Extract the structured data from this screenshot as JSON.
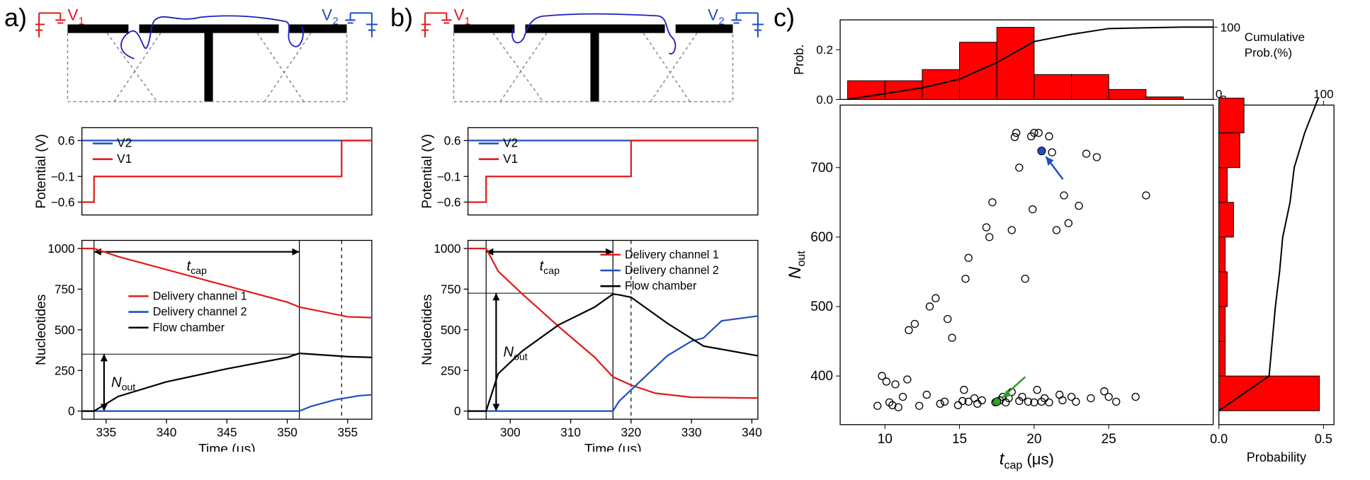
{
  "colors": {
    "v1": "#e31a1c",
    "v2": "#1f4fbf",
    "black": "#000000",
    "barFill": "#ff0000",
    "barEdge": "#000000",
    "axisColor": "#000000",
    "polymer": "#1f1fbf",
    "schemBlack": "#000000",
    "dashGray": "#888888"
  },
  "fontsizes": {
    "panelLabel": 36,
    "axisLabel": 22,
    "tick": 18,
    "legend": 18,
    "sublabel": 22
  },
  "panelA": {
    "label": "a)",
    "schematic": {
      "v1": "V",
      "v1sub": "1",
      "v2": "V",
      "v2sub": "2"
    },
    "potential": {
      "ylabel": "Potential (V)",
      "yticks": [
        -0.6,
        -0.1,
        0.6
      ],
      "ytickLabels": [
        "−0.6",
        "−0.1",
        "0.6"
      ],
      "xlim": [
        333,
        357
      ],
      "ylim": [
        -0.85,
        0.85
      ],
      "legend": [
        "V2",
        "V1"
      ],
      "v2": {
        "x": [
          333,
          357
        ],
        "y": [
          0.6,
          0.6
        ]
      },
      "v1": {
        "x": [
          333,
          334,
          334,
          354.5,
          354.5,
          357
        ],
        "y": [
          -0.6,
          -0.6,
          -0.1,
          -0.1,
          0.6,
          0.6
        ]
      }
    },
    "nuc": {
      "ylabel": "Nucleotides",
      "xlabel": "Time (μs)",
      "xticks": [
        335,
        340,
        345,
        350,
        355
      ],
      "yticks": [
        0,
        250,
        500,
        750,
        1000
      ],
      "xlim": [
        333,
        357
      ],
      "ylim": [
        -50,
        1050
      ],
      "legend": [
        "Delivery channel 1",
        "Delivery channel 2",
        "Flow chamber"
      ],
      "tcapLabel": "t",
      "tcapSub": "cap",
      "noutLabel": "N",
      "noutSub": "out",
      "ch1": {
        "x": [
          333,
          334,
          336,
          340,
          345,
          350,
          351,
          355,
          357
        ],
        "y": [
          1000,
          1000,
          950,
          870,
          770,
          670,
          640,
          580,
          575
        ]
      },
      "ch2": {
        "x": [
          333,
          351,
          352,
          354,
          356,
          357
        ],
        "y": [
          0,
          0,
          30,
          70,
          95,
          100
        ]
      },
      "flow": {
        "x": [
          333,
          334,
          336,
          340,
          345,
          350,
          351,
          352,
          355,
          357
        ],
        "y": [
          0,
          0,
          90,
          180,
          260,
          330,
          355,
          350,
          335,
          330
        ]
      },
      "t1": 334,
      "t2": 351,
      "tdash": 354.5,
      "nout": 350
    }
  },
  "panelB": {
    "label": "b)",
    "schematic": {
      "v1": "V",
      "v1sub": "1",
      "v2": "V",
      "v2sub": "2"
    },
    "potential": {
      "ylabel": "Potential (V)",
      "yticks": [
        -0.6,
        -0.1,
        0.6
      ],
      "ytickLabels": [
        "−0.6",
        "−0.1",
        "0.6"
      ],
      "xlim": [
        293,
        341
      ],
      "ylim": [
        -0.85,
        0.85
      ],
      "legend": [
        "V2",
        "V1"
      ],
      "v2": {
        "x": [
          293,
          341
        ],
        "y": [
          0.6,
          0.6
        ]
      },
      "v1": {
        "x": [
          293,
          296,
          296,
          320,
          320,
          341
        ],
        "y": [
          -0.6,
          -0.6,
          -0.1,
          -0.1,
          0.6,
          0.6
        ]
      }
    },
    "nuc": {
      "ylabel": "Nucleotides",
      "xlabel": "Time (μs)",
      "xticks": [
        300,
        310,
        320,
        330,
        340
      ],
      "yticks": [
        0,
        250,
        500,
        750,
        1000
      ],
      "xlim": [
        293,
        341
      ],
      "ylim": [
        -50,
        1050
      ],
      "legend": [
        "Delivery channel 1",
        "Delivery channel 2",
        "Flow chamber"
      ],
      "tcapLabel": "t",
      "tcapSub": "cap",
      "noutLabel": "N",
      "noutSub": "out",
      "ch1": {
        "x": [
          293,
          296,
          298,
          302,
          308,
          314,
          317,
          320,
          324,
          330,
          341
        ],
        "y": [
          1000,
          1000,
          860,
          720,
          520,
          330,
          210,
          160,
          110,
          85,
          80
        ]
      },
      "ch2": {
        "x": [
          293,
          317,
          318,
          322,
          326,
          330,
          332,
          335,
          341
        ],
        "y": [
          0,
          0,
          60,
          200,
          340,
          430,
          450,
          555,
          585
        ]
      },
      "flow": {
        "x": [
          293,
          296,
          298,
          302,
          308,
          314,
          317,
          318,
          320,
          326,
          332,
          341
        ],
        "y": [
          0,
          0,
          230,
          370,
          530,
          640,
          720,
          715,
          700,
          540,
          400,
          340
        ]
      },
      "t1": 296,
      "t2": 317,
      "tdash": 320,
      "nout": 725
    }
  },
  "panelC": {
    "label": "c)",
    "probLabel": "Prob.",
    "cumLabel1": "Cumulative",
    "cumLabel2": "Prob.(%)",
    "probLabelRight": "Probability",
    "xlabel": "t",
    "xlabelSub": "cap",
    "xlabelUnit": " (μs)",
    "ylabel": "N",
    "ylabelSub": "out",
    "topHist": {
      "xlim": [
        7,
        32
      ],
      "ylim": [
        0,
        0.32
      ],
      "yticks": [
        0.0,
        0.2
      ],
      "ytickLabels": [
        "0.0",
        "0.2"
      ],
      "cumlim": [
        0,
        110
      ],
      "cumticks": [
        0,
        100
      ],
      "bins": [
        7.5,
        10,
        12.5,
        15,
        17.5,
        20,
        22.5,
        25,
        27.5,
        30
      ],
      "counts": [
        0.075,
        0.075,
        0.12,
        0.23,
        0.29,
        0.1,
        0.1,
        0.04,
        0.01
      ],
      "cumx": [
        7.5,
        10,
        12.5,
        15,
        17.5,
        20,
        22.5,
        25,
        27.5,
        30,
        32
      ],
      "cumy": [
        0,
        8,
        16,
        28,
        51,
        80,
        90,
        98,
        99,
        100,
        100
      ]
    },
    "scatter": {
      "xlim": [
        7,
        32
      ],
      "ylim": [
        330,
        790
      ],
      "xticks": [
        10,
        15,
        20,
        25
      ],
      "yticks": [
        400,
        500,
        600,
        700
      ],
      "bluePoint": {
        "x": 20.5,
        "y": 724
      },
      "greenPoint": {
        "x": 17.5,
        "y": 363
      },
      "points": [
        [
          9.5,
          357
        ],
        [
          9.8,
          400
        ],
        [
          10.1,
          392
        ],
        [
          10.3,
          362
        ],
        [
          10.5,
          358
        ],
        [
          10.7,
          388
        ],
        [
          10.9,
          355
        ],
        [
          11.2,
          370
        ],
        [
          11.5,
          395
        ],
        [
          11.6,
          466
        ],
        [
          12.0,
          475
        ],
        [
          12.3,
          357
        ],
        [
          12.8,
          373
        ],
        [
          13.0,
          500
        ],
        [
          13.4,
          512
        ],
        [
          13.7,
          360
        ],
        [
          14.0,
          363
        ],
        [
          14.2,
          482
        ],
        [
          14.5,
          455
        ],
        [
          14.9,
          358
        ],
        [
          15.2,
          364
        ],
        [
          15.3,
          380
        ],
        [
          15.4,
          540
        ],
        [
          15.6,
          570
        ],
        [
          15.6,
          363
        ],
        [
          16.0,
          368
        ],
        [
          16.2,
          360
        ],
        [
          16.5,
          365
        ],
        [
          16.8,
          614
        ],
        [
          17.0,
          600
        ],
        [
          17.2,
          650
        ],
        [
          17.4,
          362
        ],
        [
          17.7,
          365
        ],
        [
          17.9,
          370
        ],
        [
          18.1,
          362
        ],
        [
          18.3,
          368
        ],
        [
          18.5,
          377
        ],
        [
          18.5,
          610
        ],
        [
          18.7,
          744
        ],
        [
          18.8,
          750
        ],
        [
          19.0,
          700
        ],
        [
          19.0,
          364
        ],
        [
          19.2,
          370
        ],
        [
          19.4,
          540
        ],
        [
          19.6,
          363
        ],
        [
          19.8,
          745
        ],
        [
          19.9,
          640
        ],
        [
          20.0,
          362
        ],
        [
          20.0,
          750
        ],
        [
          20.2,
          380
        ],
        [
          20.3,
          750
        ],
        [
          20.5,
          363
        ],
        [
          20.7,
          368
        ],
        [
          21.0,
          362
        ],
        [
          21.0,
          745
        ],
        [
          21.2,
          722
        ],
        [
          21.5,
          610
        ],
        [
          21.7,
          373
        ],
        [
          21.9,
          365
        ],
        [
          22.0,
          660
        ],
        [
          22.3,
          620
        ],
        [
          22.5,
          370
        ],
        [
          22.8,
          363
        ],
        [
          23.0,
          645
        ],
        [
          23.5,
          720
        ],
        [
          23.8,
          368
        ],
        [
          24.2,
          715
        ],
        [
          24.7,
          378
        ],
        [
          25.0,
          370
        ],
        [
          25.5,
          363
        ],
        [
          26.8,
          370
        ],
        [
          27.5,
          660
        ]
      ]
    },
    "rightHist": {
      "ylim": [
        330,
        790
      ],
      "xlim": [
        0,
        0.55
      ],
      "xticks": [
        0.0,
        0.5
      ],
      "xtickLabels": [
        "0.0",
        "0.5"
      ],
      "cumlim": [
        0,
        110
      ],
      "cumticks": [
        0,
        100
      ],
      "bins": [
        350,
        400,
        450,
        500,
        550,
        600,
        650,
        700,
        750,
        800
      ],
      "counts": [
        0.48,
        0.03,
        0.03,
        0.04,
        0.03,
        0.07,
        0.04,
        0.1,
        0.12
      ],
      "cumy": [
        350,
        400,
        450,
        500,
        550,
        600,
        650,
        700,
        750,
        800
      ],
      "cumx": [
        0,
        48,
        51,
        54,
        58,
        61,
        68,
        72,
        82,
        95
      ]
    }
  }
}
